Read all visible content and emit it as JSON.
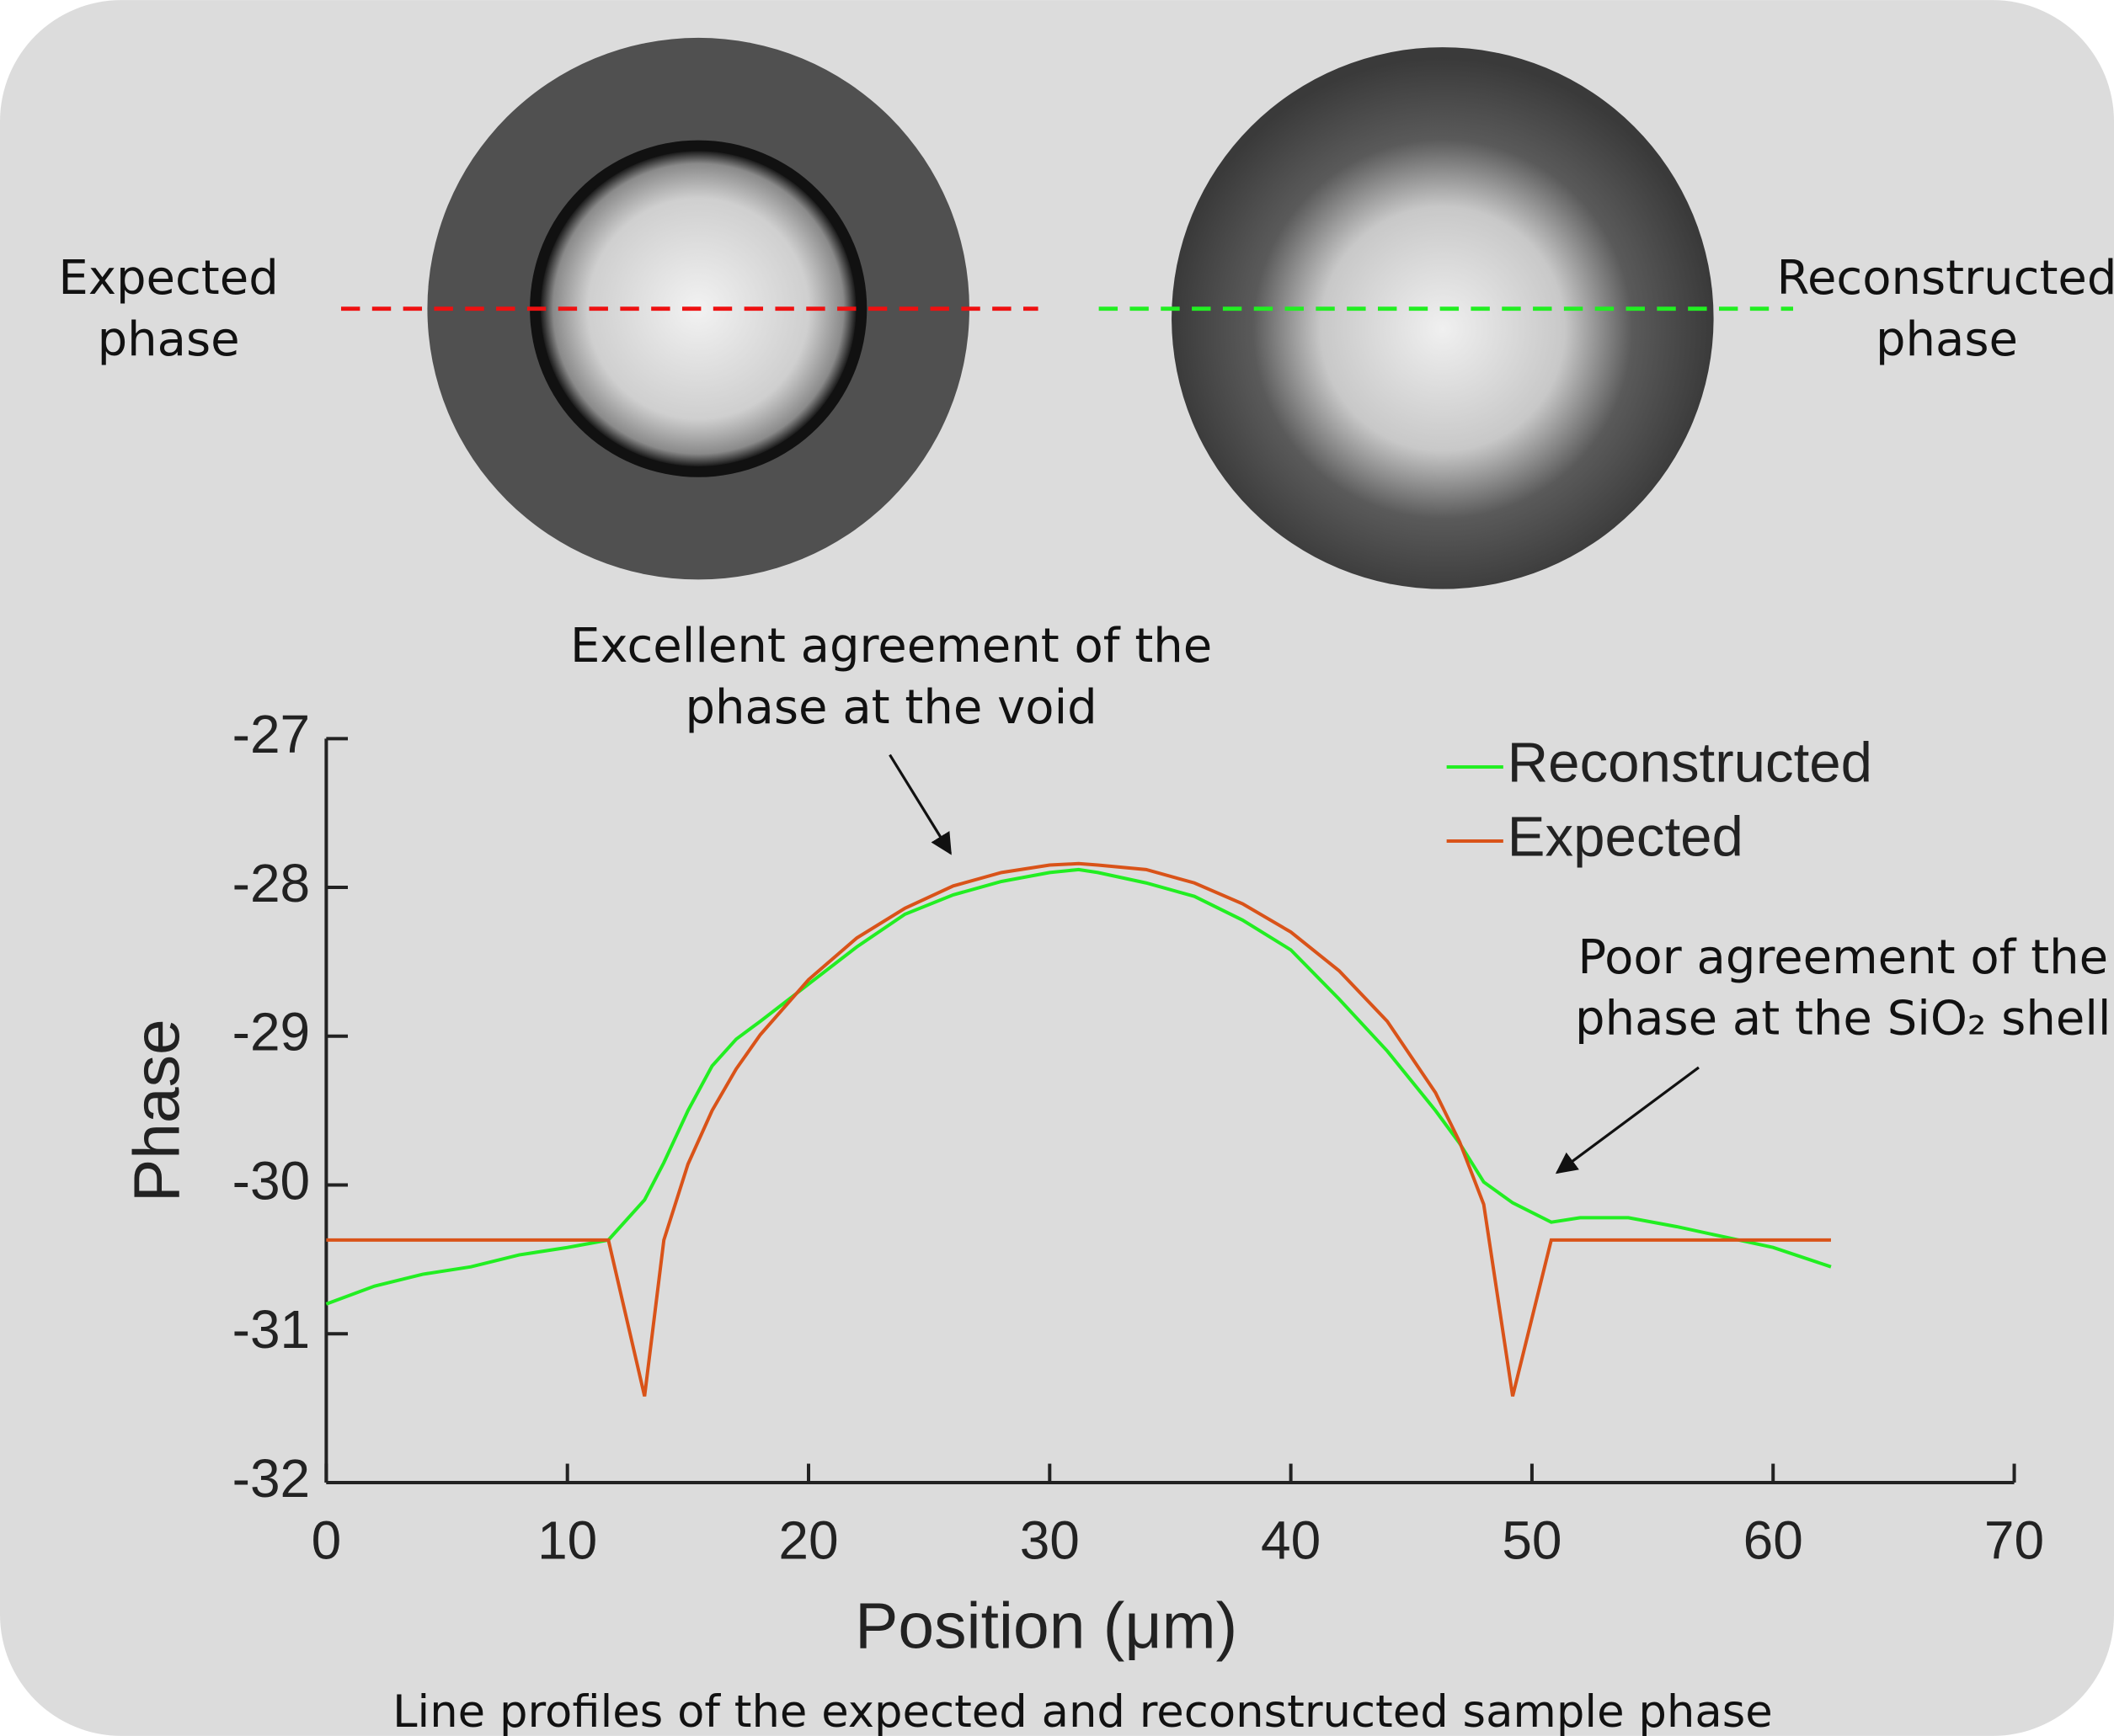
{
  "chart_data": {
    "type": "line",
    "x_label": "Position (μm)",
    "y_label": "Phase",
    "caption": "Line profiles of the expected and reconstructed sample phase",
    "image_labels": [
      "Expected phase",
      "Reconstructed phase"
    ],
    "annotations": [
      "Excellent agreement of the phase at the void",
      "Poor agreement of the phase at the SiO₂ shell"
    ],
    "x": [
      0,
      2,
      4,
      6,
      8,
      10,
      11.7,
      13.2,
      14,
      15,
      16,
      17,
      18,
      20,
      22,
      24,
      26,
      28,
      30,
      31.2,
      32,
      34,
      36,
      38,
      40,
      42,
      44,
      46,
      47,
      48,
      49.2,
      50.8,
      52,
      54,
      56,
      58,
      60,
      62.4
    ],
    "series": [
      {
        "name": "Reconstructed",
        "color": "#22ee22",
        "values": [
          -30.8,
          -30.68,
          -30.6,
          -30.55,
          -30.47,
          -30.42,
          -30.37,
          -30.1,
          -29.85,
          -29.5,
          -29.2,
          -29.02,
          -28.9,
          -28.65,
          -28.4,
          -28.18,
          -28.05,
          -27.96,
          -27.9,
          -27.88,
          -27.9,
          -27.97,
          -28.06,
          -28.22,
          -28.42,
          -28.75,
          -29.1,
          -29.5,
          -29.72,
          -29.98,
          -30.12,
          -30.25,
          -30.22,
          -30.22,
          -30.28,
          -30.35,
          -30.42,
          -30.55
        ]
      },
      {
        "name": "Expected",
        "color": "#d95319",
        "values": [
          -30.37,
          -30.37,
          -30.37,
          -30.37,
          -30.37,
          -30.37,
          -30.37,
          -31.42,
          -30.37,
          -29.86,
          -29.5,
          -29.22,
          -28.99,
          -28.62,
          -28.34,
          -28.14,
          -27.99,
          -27.9,
          -27.85,
          -27.84,
          -27.85,
          -27.88,
          -27.97,
          -28.11,
          -28.3,
          -28.56,
          -28.9,
          -29.38,
          -29.71,
          -30.13,
          -31.42,
          -30.37,
          -30.37,
          -30.37,
          -30.37,
          -30.37,
          -30.37,
          -30.37
        ]
      }
    ],
    "xlim": [
      0,
      70
    ],
    "xticks": [
      0,
      10,
      20,
      30,
      40,
      50,
      60,
      70
    ],
    "ylim": [
      -32,
      -27
    ],
    "yticks": [
      -32,
      -31,
      -30,
      -29,
      -28,
      -27
    ],
    "grid": false
  }
}
